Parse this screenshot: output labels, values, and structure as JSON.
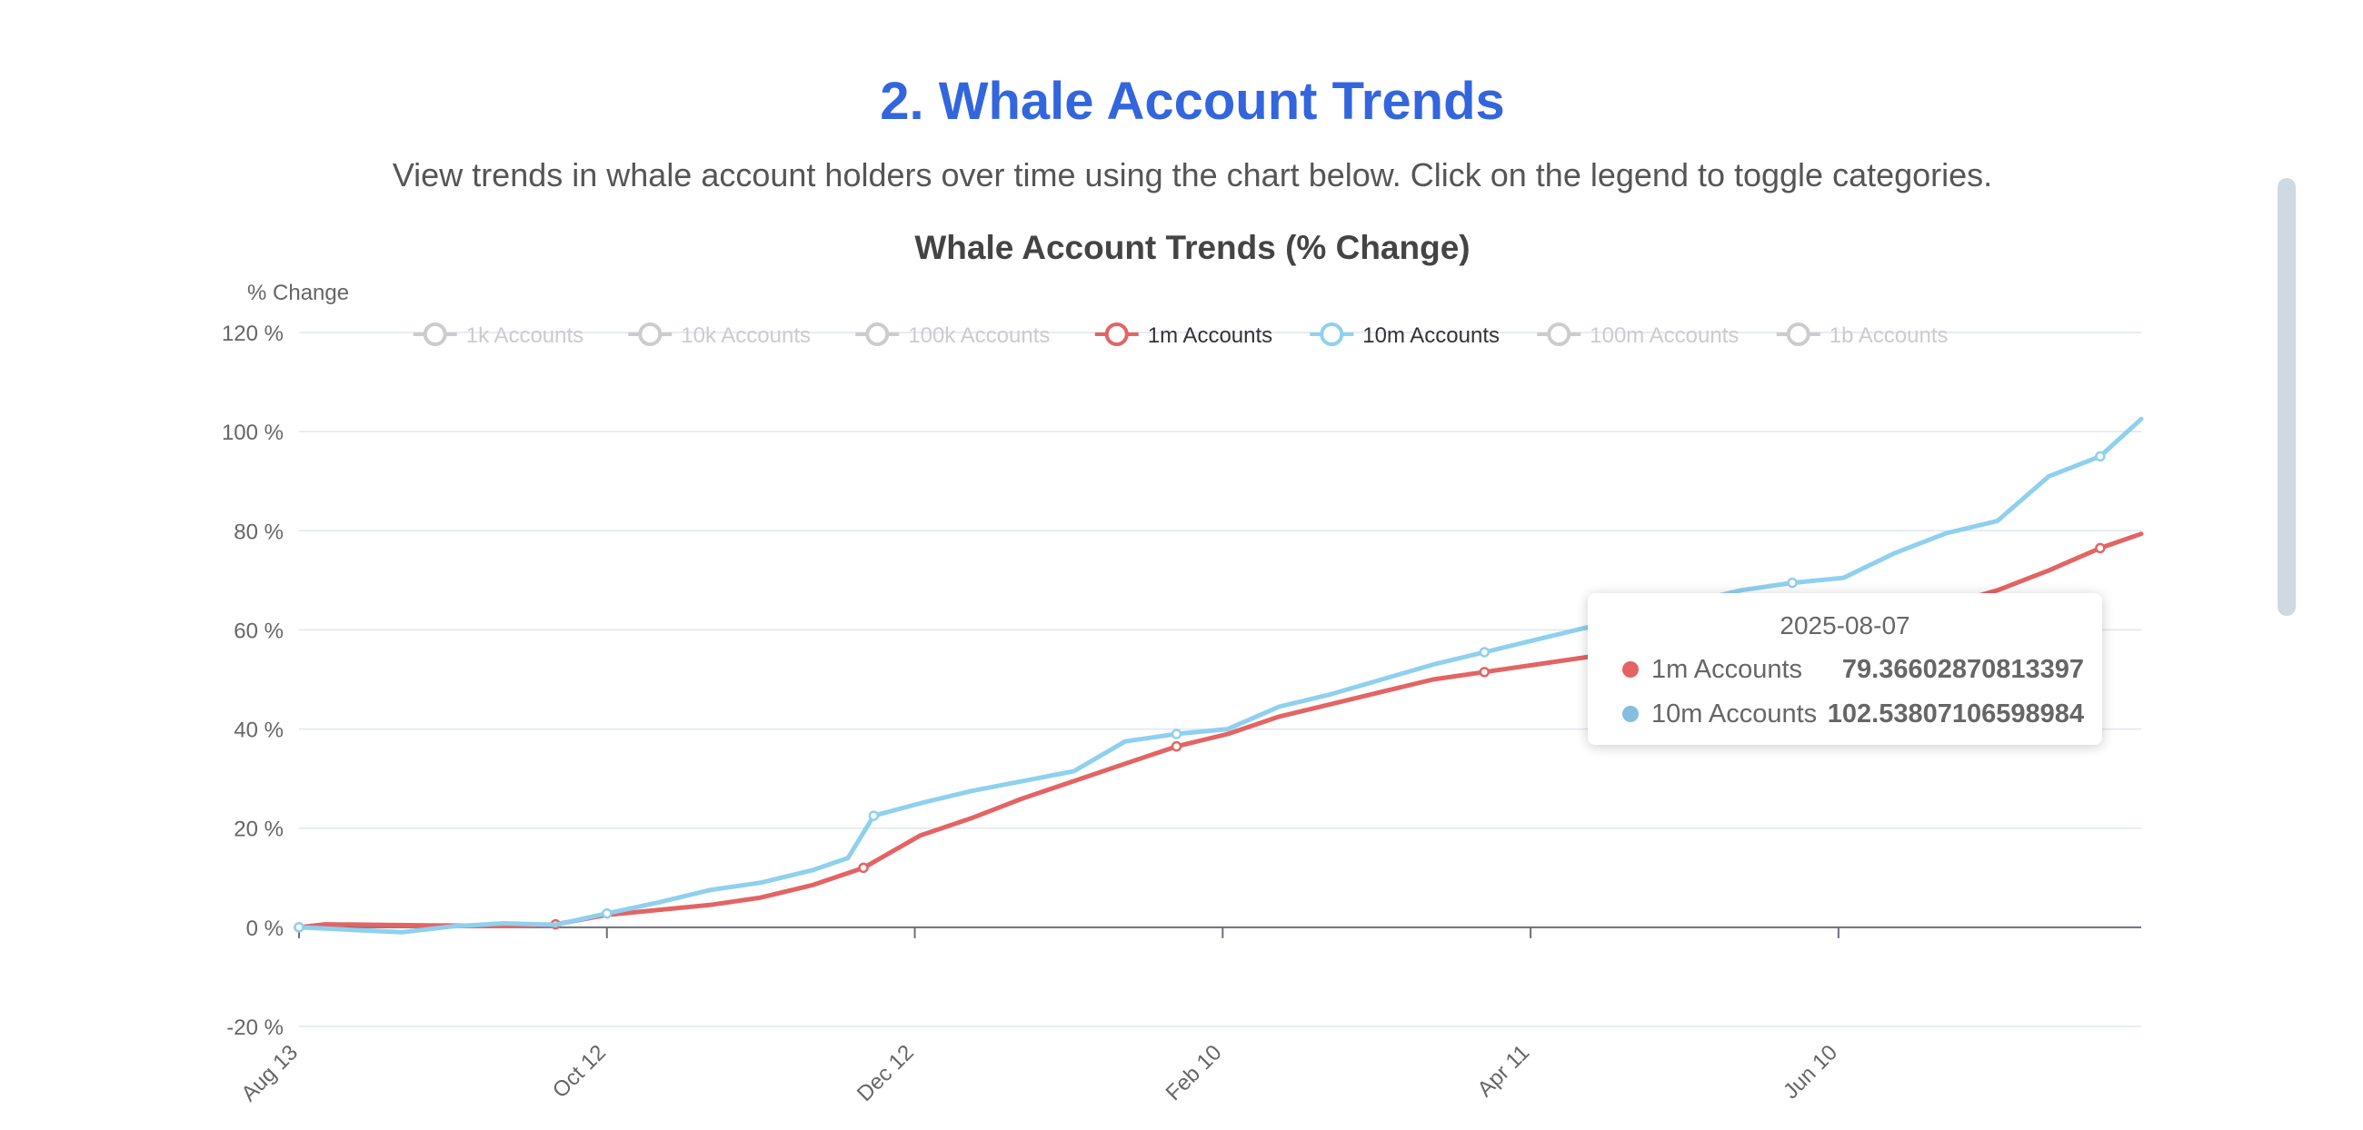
{
  "page": {
    "title": "2. Whale Account Trends",
    "description": "View trends in whale account holders over time using the chart below. Click on the legend to toggle categories."
  },
  "tooltip": {
    "date": "2025-08-07",
    "rows": [
      {
        "name": "1m Accounts",
        "value": "79.36602870813397",
        "color": "#e36464"
      },
      {
        "name": "10m Accounts",
        "value": "102.53807106598984",
        "color": "#84bfe0"
      }
    ]
  },
  "chart_data": {
    "type": "line",
    "title": "Whale Account Trends (% Change)",
    "ylabel": "% Change",
    "ylim": [
      -20,
      120
    ],
    "y_ticks": [
      -20,
      0,
      20,
      40,
      60,
      80,
      100,
      120
    ],
    "y_tick_suffix": " %",
    "x_tick_labels": [
      "Aug 13",
      "Oct 12",
      "Dec 12",
      "Feb 10",
      "Apr 11",
      "Jun 10"
    ],
    "x_range": [
      "2024-08-13",
      "2025-08-07"
    ],
    "grid": true,
    "legend_position": "top",
    "legend": [
      {
        "name": "1k Accounts",
        "active": false,
        "color": "#cccccc"
      },
      {
        "name": "10k Accounts",
        "active": false,
        "color": "#cccccc"
      },
      {
        "name": "100k Accounts",
        "active": false,
        "color": "#cccccc"
      },
      {
        "name": "1m Accounts",
        "active": true,
        "color": "#e36464"
      },
      {
        "name": "10m Accounts",
        "active": true,
        "color": "#8fd0ee"
      },
      {
        "name": "100m Accounts",
        "active": false,
        "color": "#cccccc"
      },
      {
        "name": "1b Accounts",
        "active": false,
        "color": "#cccccc"
      }
    ],
    "series": [
      {
        "name": "1m Accounts",
        "color": "#e36464",
        "points": [
          [
            "2024-08-13",
            0
          ],
          [
            "2024-08-18",
            0.6
          ],
          [
            "2024-08-28",
            0.5
          ],
          [
            "2024-09-07",
            0.4
          ],
          [
            "2024-09-17",
            0.3
          ],
          [
            "2024-09-27",
            0.4
          ],
          [
            "2024-10-02",
            0.6
          ],
          [
            "2024-10-12",
            2.5
          ],
          [
            "2024-10-22",
            3.5
          ],
          [
            "2024-11-01",
            4.5
          ],
          [
            "2024-11-11",
            6.0
          ],
          [
            "2024-11-21",
            8.5
          ],
          [
            "2024-12-01",
            12.0
          ],
          [
            "2024-12-12",
            18.5
          ],
          [
            "2024-12-22",
            22.0
          ],
          [
            "2025-01-01",
            26.0
          ],
          [
            "2025-01-11",
            29.5
          ],
          [
            "2025-01-21",
            33.0
          ],
          [
            "2025-01-31",
            36.5
          ],
          [
            "2025-02-10",
            39.0
          ],
          [
            "2025-02-20",
            42.5
          ],
          [
            "2025-03-02",
            45.0
          ],
          [
            "2025-03-12",
            47.5
          ],
          [
            "2025-03-22",
            50.0
          ],
          [
            "2025-04-01",
            51.5
          ],
          [
            "2025-04-11",
            53.0
          ],
          [
            "2025-04-21",
            54.5
          ],
          [
            "2025-05-01",
            56.0
          ],
          [
            "2025-05-11",
            57.5
          ],
          [
            "2025-05-21",
            59.0
          ],
          [
            "2025-05-31",
            60.5
          ],
          [
            "2025-06-10",
            62.0
          ],
          [
            "2025-06-20",
            63.5
          ],
          [
            "2025-06-30",
            65.0
          ],
          [
            "2025-07-10",
            68.0
          ],
          [
            "2025-07-20",
            72.0
          ],
          [
            "2025-07-30",
            76.5
          ],
          [
            "2025-08-07",
            79.37
          ]
        ]
      },
      {
        "name": "10m Accounts",
        "color": "#8fd0ee",
        "points": [
          [
            "2024-08-13",
            0
          ],
          [
            "2024-08-23",
            -0.5
          ],
          [
            "2024-09-02",
            -1.0
          ],
          [
            "2024-09-12",
            0.2
          ],
          [
            "2024-09-22",
            0.8
          ],
          [
            "2024-10-02",
            0.5
          ],
          [
            "2024-10-12",
            2.8
          ],
          [
            "2024-10-22",
            5.0
          ],
          [
            "2024-11-01",
            7.5
          ],
          [
            "2024-11-11",
            9.0
          ],
          [
            "2024-11-21",
            11.5
          ],
          [
            "2024-11-28",
            14.0
          ],
          [
            "2024-12-03",
            22.5
          ],
          [
            "2024-12-12",
            25.0
          ],
          [
            "2024-12-22",
            27.5
          ],
          [
            "2025-01-01",
            29.5
          ],
          [
            "2025-01-11",
            31.5
          ],
          [
            "2025-01-21",
            37.5
          ],
          [
            "2025-01-31",
            39.0
          ],
          [
            "2025-02-10",
            40.0
          ],
          [
            "2025-02-20",
            44.5
          ],
          [
            "2025-03-02",
            47.0
          ],
          [
            "2025-03-12",
            50.0
          ],
          [
            "2025-03-22",
            53.0
          ],
          [
            "2025-04-01",
            55.5
          ],
          [
            "2025-04-11",
            58.0
          ],
          [
            "2025-04-21",
            60.5
          ],
          [
            "2025-05-01",
            63.0
          ],
          [
            "2025-05-11",
            65.5
          ],
          [
            "2025-05-21",
            68.0
          ],
          [
            "2025-05-31",
            69.5
          ],
          [
            "2025-06-10",
            70.5
          ],
          [
            "2025-06-20",
            75.5
          ],
          [
            "2025-06-30",
            79.5
          ],
          [
            "2025-07-10",
            82.0
          ],
          [
            "2025-07-20",
            91.0
          ],
          [
            "2025-07-30",
            95.0
          ],
          [
            "2025-08-07",
            102.54
          ]
        ]
      }
    ]
  }
}
